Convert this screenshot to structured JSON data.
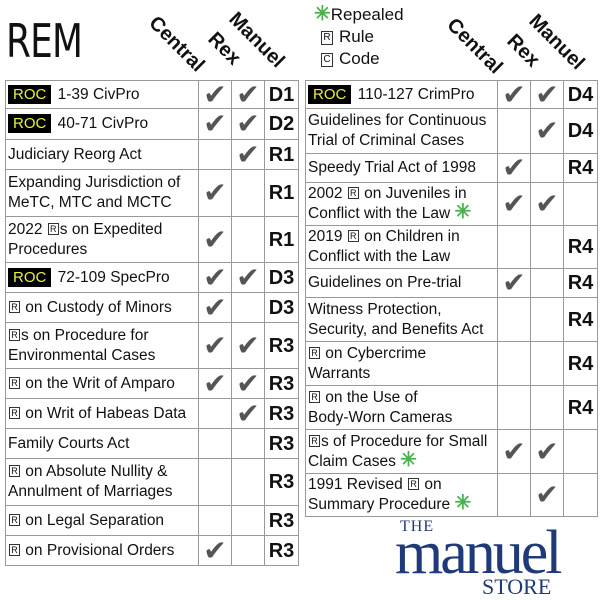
{
  "title": "REM",
  "columns": [
    "Central",
    "Rex",
    "Manuel"
  ],
  "legend": {
    "repealed": "Repealed",
    "rule_symbol": "R",
    "rule": "Rule",
    "code_symbol": "C",
    "code": "Code"
  },
  "colors": {
    "repealed_star": "#4caf50",
    "roc_badge_bg": "#000000",
    "roc_badge_text": "#e8f040",
    "logo": "#1f3a78",
    "check": "#555555"
  },
  "check_glyph": "✔",
  "star_glyph": "✳",
  "left_table": [
    {
      "badge": "ROC",
      "text": " 1-39 CivPro",
      "central": true,
      "rex": true,
      "code": "D1"
    },
    {
      "badge": "ROC",
      "text": " 40-71 CivPro",
      "central": true,
      "rex": true,
      "code": "D2"
    },
    {
      "text": "Judiciary Reorg Act",
      "central": false,
      "rex": true,
      "code": "R1"
    },
    {
      "text": "Expanding Jurisdiction of\nMeTC, MTC and MCTC",
      "central": true,
      "rex": false,
      "code": "R1"
    },
    {
      "pre": "2022 ",
      "rule": "R",
      "text": "s on Expedited\nProcedures",
      "central": true,
      "rex": false,
      "code": "R1"
    },
    {
      "badge": "ROC",
      "text": " 72-109 SpecPro",
      "central": true,
      "rex": true,
      "code": "D3"
    },
    {
      "rule": "R",
      "text": " on Custody of Minors",
      "central": true,
      "rex": false,
      "code": "D3"
    },
    {
      "rule": "R",
      "text": "s on Procedure for\nEnvironmental Cases",
      "central": true,
      "rex": true,
      "code": "R3"
    },
    {
      "rule": "R",
      "text": " on the Writ of Amparo",
      "central": true,
      "rex": true,
      "code": "R3"
    },
    {
      "rule": "R",
      "text": " on Writ of Habeas Data",
      "central": false,
      "rex": true,
      "code": "R3"
    },
    {
      "text": "Family Courts Act",
      "central": false,
      "rex": false,
      "code": "R3"
    },
    {
      "rule": "R",
      "text": " on Absolute Nullity &\nAnnulment of Marriages",
      "central": false,
      "rex": false,
      "code": "R3"
    },
    {
      "rule": "R",
      "text": " on Legal Separation",
      "central": false,
      "rex": false,
      "code": "R3"
    },
    {
      "rule": "R",
      "text": " on Provisional Orders",
      "central": true,
      "rex": false,
      "code": "R3"
    }
  ],
  "right_table": [
    {
      "badge": "ROC",
      "text": " 110-127 CrimPro",
      "central": true,
      "rex": true,
      "code": "D4"
    },
    {
      "text": "Guidelines for Continuous\nTrial of Criminal Cases",
      "central": false,
      "rex": true,
      "code": "D4"
    },
    {
      "text": "Speedy Trial Act of 1998",
      "central": true,
      "rex": false,
      "code": "R4"
    },
    {
      "pre": "2002 ",
      "rule": "R",
      "text": " on Juveniles in\nConflict with the Law ",
      "central": true,
      "rex": true,
      "code": "",
      "repealed": true
    },
    {
      "pre": "2019 ",
      "rule": "R",
      "text": " on Children in\nConflict with the Law",
      "central": false,
      "rex": false,
      "code": "R4"
    },
    {
      "text": "Guidelines on Pre-trial",
      "central": true,
      "rex": false,
      "code": "R4"
    },
    {
      "text": "Witness Protection,\nSecurity, and Benefits Act",
      "central": false,
      "rex": false,
      "code": "R4"
    },
    {
      "rule": "R",
      "text": " on Cybercrime\nWarrants",
      "central": false,
      "rex": false,
      "code": "R4"
    },
    {
      "rule": "R",
      "text": " on the Use of\nBody-Worn Cameras",
      "central": false,
      "rex": false,
      "code": "R4"
    },
    {
      "rule": "R",
      "text": "s of Procedure for Small\nClaim Cases ",
      "central": true,
      "rex": true,
      "code": "",
      "repealed": true
    },
    {
      "pre": "1991 Revised ",
      "rule": "R",
      "text": " on\nSummary Procedure ",
      "central": false,
      "rex": true,
      "code": "",
      "repealed": true
    }
  ],
  "logo": {
    "the": "THE",
    "manuel": "manuel",
    "store": "STORE"
  }
}
